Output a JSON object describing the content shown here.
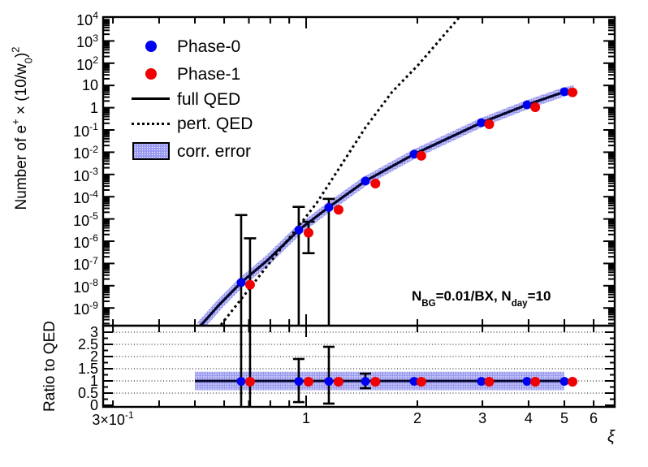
{
  "figure": {
    "background": "#ffffff"
  },
  "legend": {
    "items": [
      {
        "label": "Phase-0",
        "marker": "circle",
        "color": "#0000f0"
      },
      {
        "label": "Phase-1",
        "marker": "circle",
        "color": "#f00000"
      },
      {
        "label": "full QED",
        "marker": "solid-line",
        "color": "#000000"
      },
      {
        "label": "pert. QED",
        "marker": "dotted-line",
        "color": "#000000"
      },
      {
        "label": "corr. error",
        "marker": "hatched-box",
        "color": "#9a9af0"
      }
    ]
  },
  "annotation": {
    "text": "N_{BG}=0.01/BX, N_{day}=10"
  },
  "axes": {
    "x": {
      "title": "ξ",
      "scale": "log",
      "range": [
        0.282,
        6.85
      ],
      "major_ticks": [
        {
          "v": 0.3,
          "label": "3×10^{-1}"
        },
        {
          "v": 1,
          "label": "1"
        },
        {
          "v": 2,
          "label": "2"
        },
        {
          "v": 3,
          "label": "3"
        },
        {
          "v": 4,
          "label": "4"
        },
        {
          "v": 5,
          "label": "5"
        },
        {
          "v": 6,
          "label": "6"
        }
      ],
      "minor_ticks": [
        0.4,
        0.5,
        0.6,
        0.7,
        0.8,
        0.9
      ]
    },
    "y_main": {
      "title": "Number of e^{+} × (10/w_{0})^{2}",
      "scale": "log",
      "range": [
        1.6e-10,
        12000.0
      ],
      "ticks": [
        {
          "v": 10000.0,
          "label": "10^{4}"
        },
        {
          "v": 1000.0,
          "label": "10^{3}"
        },
        {
          "v": 100.0,
          "label": "10^{2}"
        },
        {
          "v": 10,
          "label": "10"
        },
        {
          "v": 1,
          "label": "1"
        },
        {
          "v": 0.1,
          "label": "10^{-1}"
        },
        {
          "v": 0.01,
          "label": "10^{-2}"
        },
        {
          "v": 0.001,
          "label": "10^{-3}"
        },
        {
          "v": 0.0001,
          "label": "10^{-4}"
        },
        {
          "v": 1e-05,
          "label": "10^{-5}"
        },
        {
          "v": 1e-06,
          "label": "10^{-6}"
        },
        {
          "v": 1e-07,
          "label": "10^{-7}"
        },
        {
          "v": 1e-08,
          "label": "10^{-8}"
        },
        {
          "v": 1e-09,
          "label": "10^{-9}"
        }
      ]
    },
    "y_ratio": {
      "title": "Ratio to QED",
      "scale": "linear",
      "range": [
        0,
        3.3
      ],
      "ticks": [
        {
          "v": 3,
          "label": "3"
        },
        {
          "v": 2.5,
          "label": "2.5"
        },
        {
          "v": 2,
          "label": "2"
        },
        {
          "v": 1.5,
          "label": "1.5"
        },
        {
          "v": 1,
          "label": "1"
        },
        {
          "v": 0.5,
          "label": "0.5"
        },
        {
          "v": 0,
          "label": "0"
        }
      ],
      "gridlines": [
        0.5,
        1,
        1.5,
        2,
        2.5,
        3
      ]
    }
  },
  "chart_data": {
    "type": "scatter",
    "title": "",
    "xlabel": "ξ",
    "x_scale": "log",
    "panels": [
      "main",
      "ratio"
    ],
    "series": [
      {
        "name": "Phase-0",
        "type": "points",
        "color": "#0000f0",
        "x": [
          0.667,
          0.955,
          1.152,
          1.447,
          1.96,
          2.98,
          3.96,
          5.0
        ],
        "y": [
          1.4e-08,
          3.2e-06,
          3.3e-05,
          0.00051,
          0.0082,
          0.213,
          1.35,
          5.2
        ],
        "ratio": [
          1,
          1,
          1,
          1,
          1,
          1,
          1,
          1
        ]
      },
      {
        "name": "Phase-1",
        "type": "points",
        "color": "#f00000",
        "x": [
          0.705,
          1.015,
          1.224,
          1.54,
          2.05,
          3.13,
          4.17,
          5.26
        ],
        "y": [
          1.1e-08,
          2.4e-06,
          2.6e-05,
          0.00039,
          0.0069,
          0.18,
          1.05,
          4.9
        ],
        "ratio": [
          1,
          1,
          1,
          1,
          1,
          1,
          1,
          1
        ]
      },
      {
        "name": "full QED",
        "type": "line",
        "color": "#05052e",
        "points": [
          [
            0.518,
            1.6e-10
          ],
          [
            0.582,
            1.4e-09
          ],
          [
            0.667,
            1.4e-08
          ],
          [
            0.788,
            1.45e-07
          ],
          [
            0.955,
            3.2e-06
          ],
          [
            1.152,
            3.4e-05
          ],
          [
            1.447,
            0.00051
          ],
          [
            1.96,
            0.0082
          ],
          [
            2.98,
            0.213
          ],
          [
            3.96,
            1.35
          ],
          [
            5.0,
            5.2
          ],
          [
            5.32,
            6.5
          ]
        ]
      },
      {
        "name": "pert. QED",
        "type": "dotted-line",
        "color": "#000000",
        "points": [
          [
            0.588,
            1.75e-10
          ],
          [
            0.777,
            6.2e-08
          ],
          [
            1.068,
            5.2e-05
          ],
          [
            1.447,
            0.128
          ],
          [
            1.71,
            5.2
          ],
          [
            2.01,
            83
          ],
          [
            2.59,
            11000.0
          ]
        ]
      }
    ],
    "main_error_bars": [
      {
        "series": "Phase-0",
        "x": 0.667,
        "hi": 1.5e-05,
        "lo": null
      },
      {
        "series": "Phase-0",
        "x": 0.955,
        "hi": 3.5e-05,
        "lo": null
      },
      {
        "series": "Phase-0",
        "x": 1.152,
        "hi": 8e-05,
        "lo": null
      },
      {
        "series": "Phase-1",
        "x": 0.705,
        "hi": 1.35e-06,
        "lo": null
      },
      {
        "series": "Phase-1",
        "x": 1.015,
        "hi": 7.5e-06,
        "lo": 2.9e-07
      }
    ],
    "ratio_error_bars": [
      {
        "x": 0.667,
        "full": true
      },
      {
        "x": 0.705,
        "full": true
      },
      {
        "x": 0.955,
        "hi": 1.9,
        "lo": 0.13
      },
      {
        "x": 1.152,
        "hi": 2.4,
        "lo": 0.07
      },
      {
        "x": 1.447,
        "hi": 1.3,
        "lo": 0.7
      }
    ],
    "corr_error_band": {
      "main_halfwidth_factor": 1.6,
      "ratio": {
        "x_min": 0.5,
        "x_max": 5.0,
        "ratio_min": 0.62,
        "ratio_max": 1.38
      }
    },
    "annotation": "N_{BG}=0.01/BX, N_{day}=10"
  }
}
